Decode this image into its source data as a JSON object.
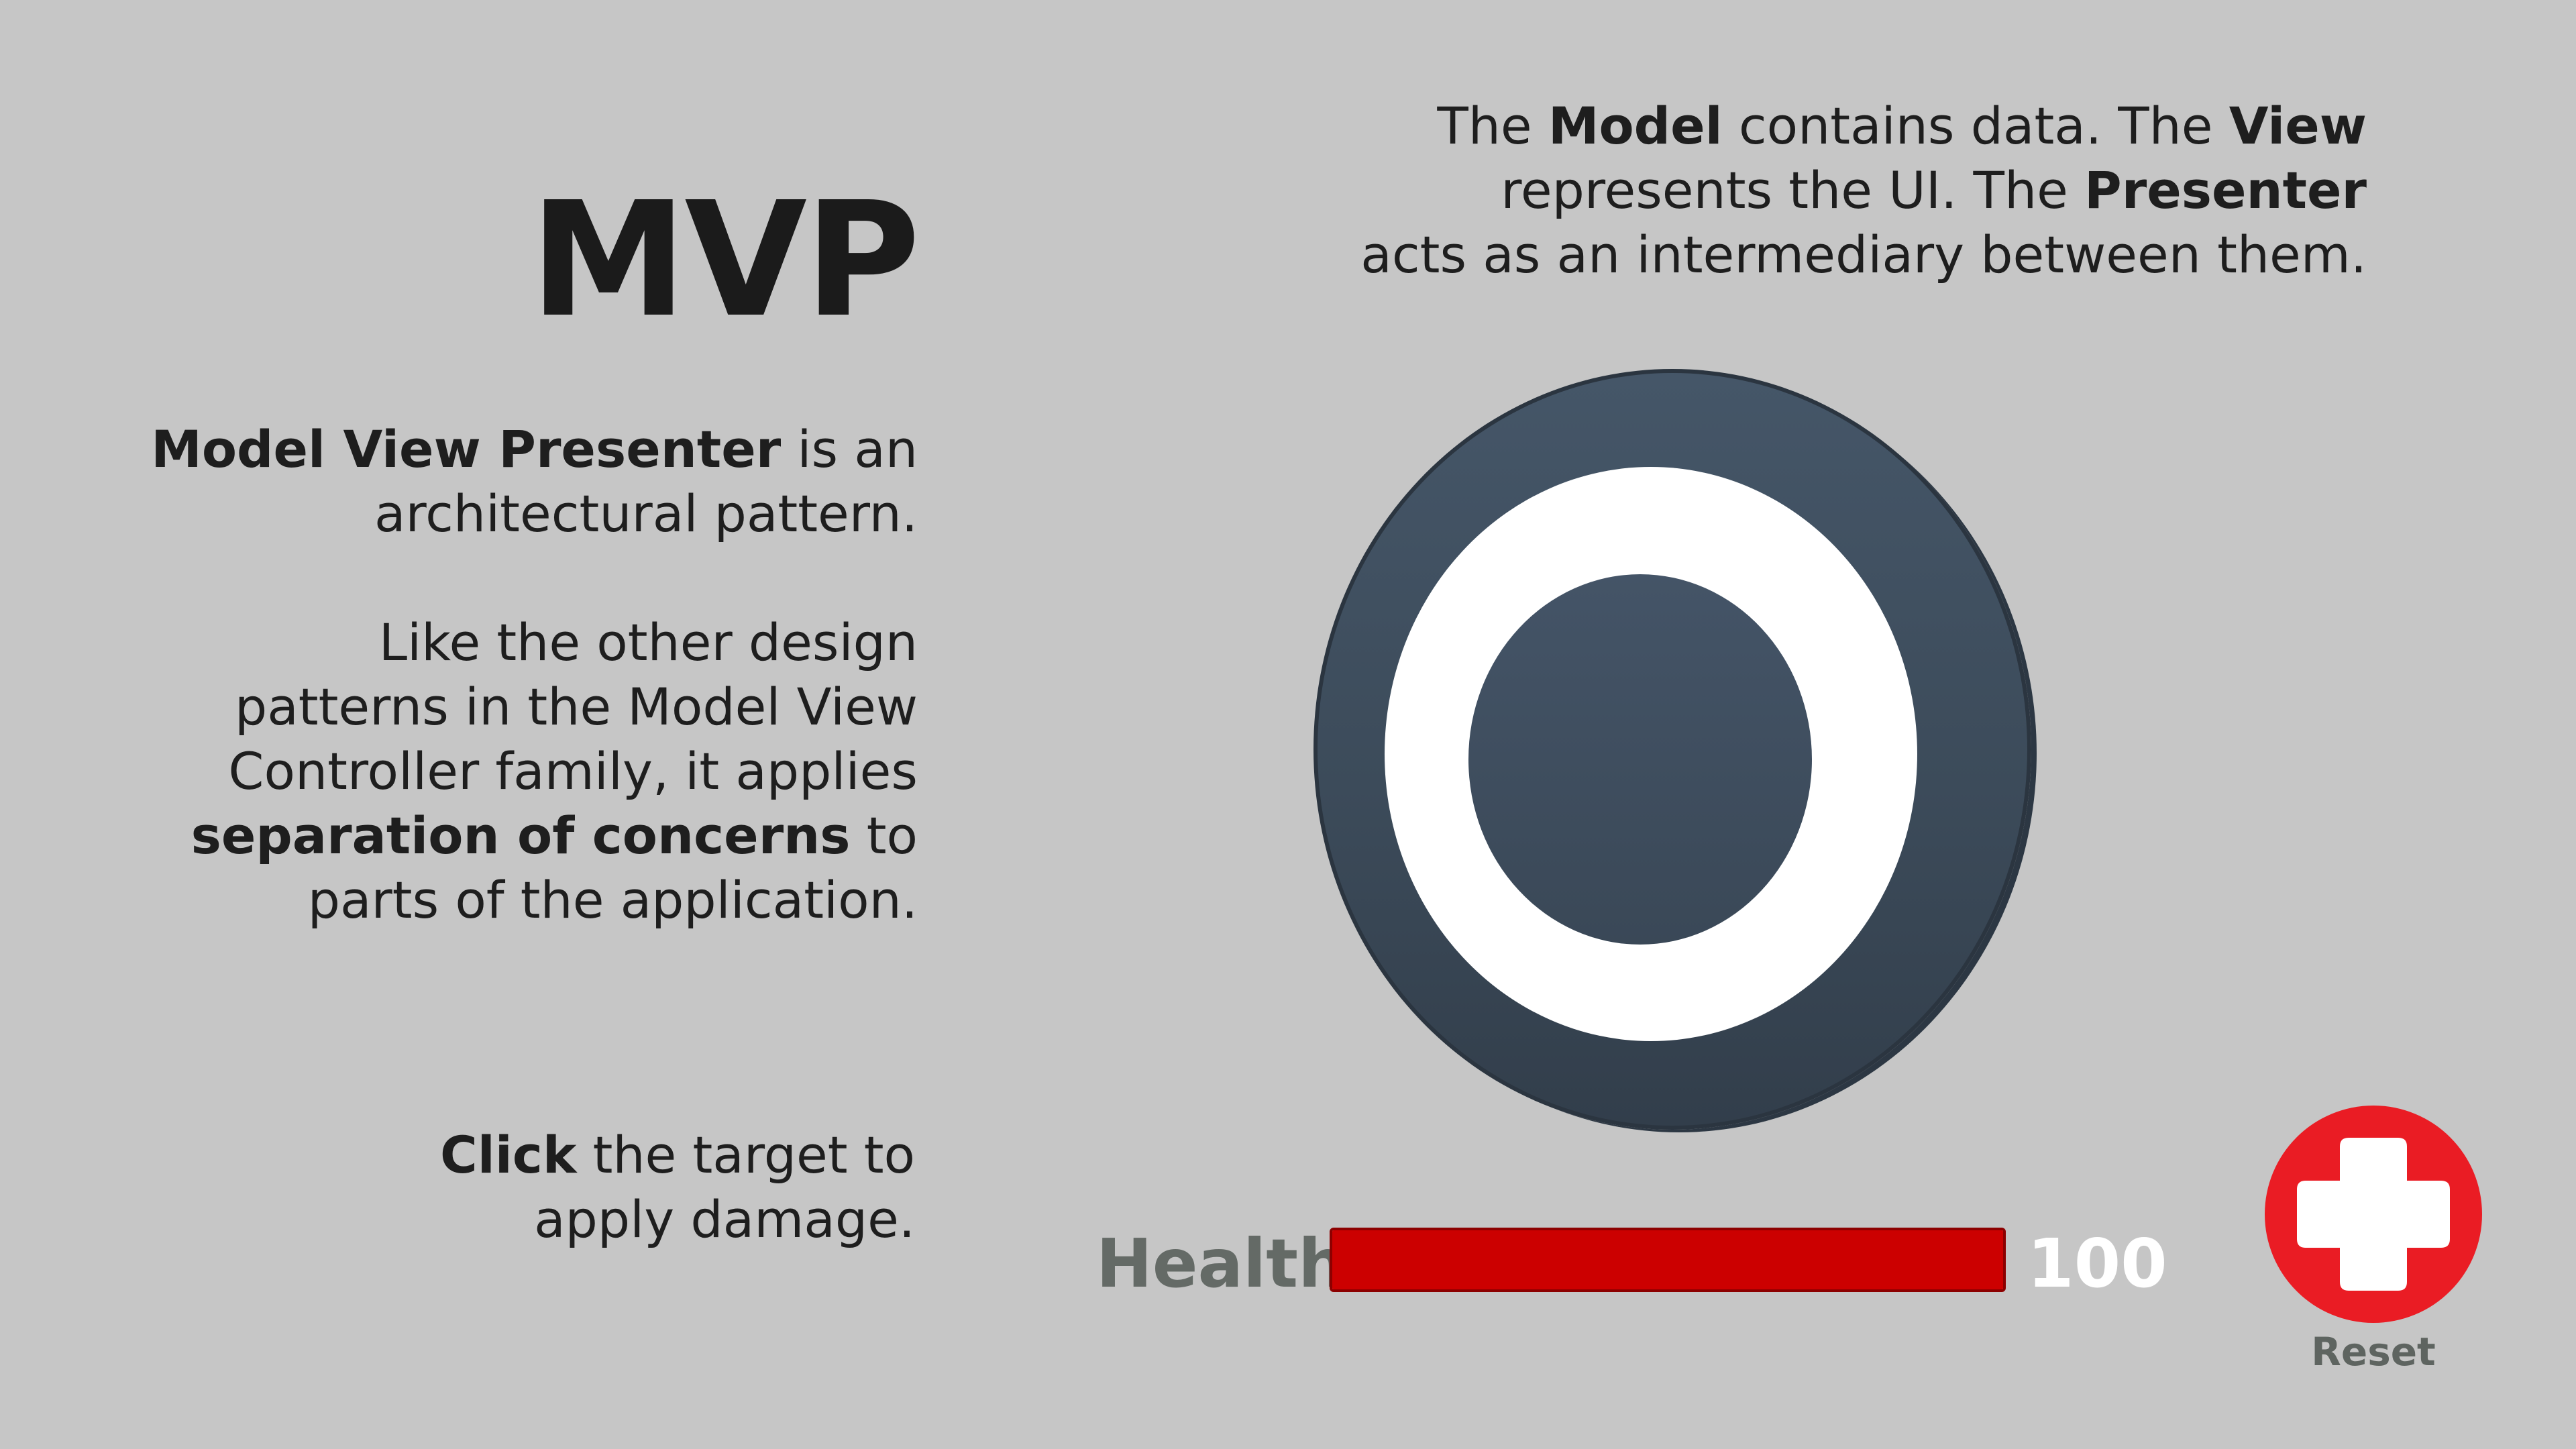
{
  "title": "MVP",
  "intro": {
    "bold": "Model View Presenter",
    "rest_line1": " is an",
    "line2": "architectural pattern."
  },
  "family": {
    "line1": "Like the other design",
    "line2": "patterns in the Model View",
    "line3": "Controller family, it applies",
    "line4_bold": "separation of concerns",
    "line4_rest": " to",
    "line5": "parts of the application."
  },
  "click_hint": {
    "bold": "Click",
    "rest_line1": " the target to",
    "line2": "apply damage."
  },
  "top_description": {
    "part1": "The ",
    "model_bold": "Model",
    "part2": " contains data. The ",
    "view_bold": "View",
    "part3": "represents the UI. The ",
    "presenter_bold": "Presenter",
    "part4": "acts as an intermediary between them."
  },
  "health": {
    "label": "Health",
    "value": "100",
    "fill_fraction": 1.0,
    "bar_color": "#cc0000"
  },
  "reset": {
    "label": "Reset",
    "icon": "plus-icon",
    "color": "#ea1c24"
  },
  "colors": {
    "background": "#c6c6c6",
    "target": "#3f4e5e",
    "target_ring": "#ffffff"
  }
}
